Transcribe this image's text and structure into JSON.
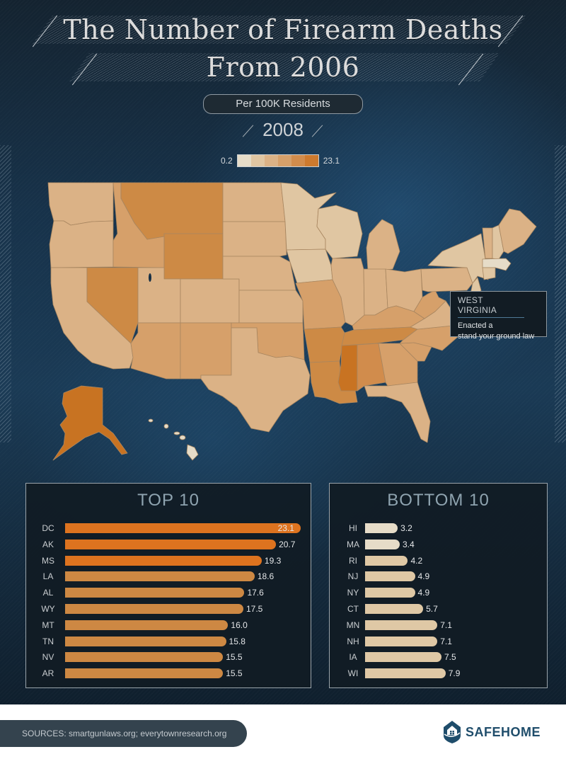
{
  "header": {
    "title_line1": "The Number of Firearm Deaths",
    "title_line2": "From 2006",
    "subtitle": "Per 100K Residents",
    "year": "2008"
  },
  "legend": {
    "min_label": "0.2",
    "max_label": "23.1",
    "colors": [
      "#e6dcc8",
      "#e0c6a2",
      "#dbb286",
      "#d6a06a",
      "#d18c4c",
      "#cd7a2e"
    ]
  },
  "map": {
    "state_colors": {
      "WA": "#dbb286",
      "OR": "#dbb286",
      "CA": "#dbb286",
      "ID": "#d6a06a",
      "NV": "#cd8a45",
      "MT": "#cd8a45",
      "WY": "#cd8a45",
      "UT": "#dbb286",
      "CO": "#dbb286",
      "AZ": "#d6a06a",
      "NM": "#d6a06a",
      "ND": "#dbb286",
      "SD": "#dbb286",
      "NE": "#dbb286",
      "KS": "#dbb286",
      "OK": "#d6a06a",
      "TX": "#dbb286",
      "MN": "#e0c6a2",
      "IA": "#e0c6a2",
      "MO": "#d6a06a",
      "AR": "#cd8a45",
      "LA": "#cd8a45",
      "WI": "#e0c6a2",
      "IL": "#dbb286",
      "MI": "#dbb286",
      "IN": "#dbb286",
      "OH": "#dbb286",
      "KY": "#d6a06a",
      "TN": "#cd8a45",
      "MS": "#c87322",
      "AL": "#d18c4c",
      "GA": "#d6a06a",
      "FL": "#dbb286",
      "SC": "#d6a06a",
      "NC": "#d6a06a",
      "VA": "#dbb286",
      "WV": "#d6a06a",
      "PA": "#dbb286",
      "NY": "#e0c6a2",
      "ME": "#dbb286",
      "VT": "#dbb286",
      "NH": "#e0c6a2",
      "MA": "#e6dcc8",
      "CT": "#e0c6a2",
      "NJ": "#e0c6a2",
      "AK": "#c87322",
      "HI": "#e6dcc8"
    },
    "callout": {
      "title": "WEST VIRGINIA",
      "text_line1": "Enacted a",
      "text_line2": "stand your ground law"
    }
  },
  "top10": {
    "title": "TOP 10",
    "rows": [
      {
        "state": "DC",
        "value": "23.1",
        "color": "#dd731f"
      },
      {
        "state": "AK",
        "value": "20.7",
        "color": "#dd731f"
      },
      {
        "state": "MS",
        "value": "19.3",
        "color": "#dd731f"
      },
      {
        "state": "LA",
        "value": "18.6",
        "color": "#cd8843"
      },
      {
        "state": "AL",
        "value": "17.6",
        "color": "#cd8843"
      },
      {
        "state": "WY",
        "value": "17.5",
        "color": "#cd8843"
      },
      {
        "state": "MT",
        "value": "16.0",
        "color": "#cd8843"
      },
      {
        "state": "TN",
        "value": "15.8",
        "color": "#cd8843"
      },
      {
        "state": "NV",
        "value": "15.5",
        "color": "#cd8843"
      },
      {
        "state": "AR",
        "value": "15.5",
        "color": "#cd8843"
      }
    ]
  },
  "bottom10": {
    "title": "BOTTOM 10",
    "rows": [
      {
        "state": "HI",
        "value": "3.2",
        "color": "#e6dcc8"
      },
      {
        "state": "MA",
        "value": "3.4",
        "color": "#e6dcc8"
      },
      {
        "state": "RI",
        "value": "4.2",
        "color": "#dfc8a5"
      },
      {
        "state": "NJ",
        "value": "4.9",
        "color": "#dfc8a5"
      },
      {
        "state": "NY",
        "value": "4.9",
        "color": "#dfc8a5"
      },
      {
        "state": "CT",
        "value": "5.7",
        "color": "#dfc8a5"
      },
      {
        "state": "MN",
        "value": "7.1",
        "color": "#dfc8a5"
      },
      {
        "state": "NH",
        "value": "7.1",
        "color": "#dfc8a5"
      },
      {
        "state": "IA",
        "value": "7.5",
        "color": "#dfc8a5"
      },
      {
        "state": "WI",
        "value": "7.9",
        "color": "#dfc8a5"
      }
    ]
  },
  "footer": {
    "sources": "SOURCES: smartgunlaws.org; everytownresearch.org",
    "brand": "SAFEHOME"
  },
  "chart_data": [
    {
      "type": "map",
      "title": "The Number of Firearm Deaths From 2006",
      "subtitle": "Per 100K Residents",
      "year": "2008",
      "legend": {
        "min": 0.2,
        "max": 23.1,
        "bins": 6
      },
      "annotation": {
        "state": "West Virginia",
        "text": "Enacted a stand your ground law"
      }
    },
    {
      "type": "bar",
      "title": "TOP 10",
      "orientation": "horizontal",
      "categories": [
        "DC",
        "AK",
        "MS",
        "LA",
        "AL",
        "WY",
        "MT",
        "TN",
        "NV",
        "AR"
      ],
      "values": [
        23.1,
        20.7,
        19.3,
        18.6,
        17.6,
        17.5,
        16.0,
        15.8,
        15.5,
        15.5
      ],
      "xlabel": "",
      "ylabel": "",
      "xlim": [
        0,
        23.1
      ]
    },
    {
      "type": "bar",
      "title": "BOTTOM 10",
      "orientation": "horizontal",
      "categories": [
        "HI",
        "MA",
        "RI",
        "NJ",
        "NY",
        "CT",
        "MN",
        "NH",
        "IA",
        "WI"
      ],
      "values": [
        3.2,
        3.4,
        4.2,
        4.9,
        4.9,
        5.7,
        7.1,
        7.1,
        7.5,
        7.9
      ],
      "xlabel": "",
      "ylabel": "",
      "xlim": [
        0,
        23.1
      ]
    }
  ]
}
